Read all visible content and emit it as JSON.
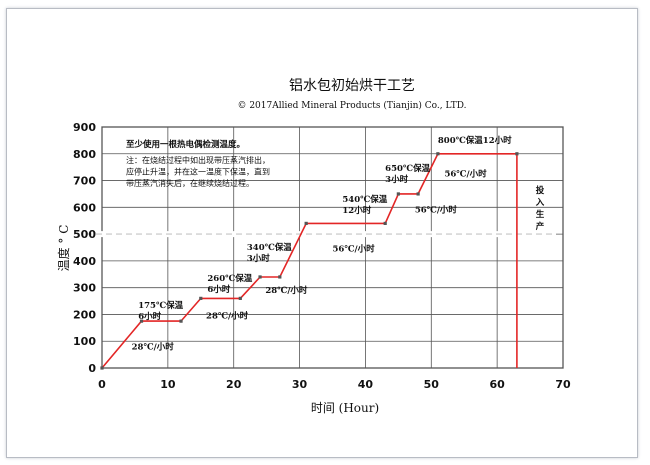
{
  "chart_data": {
    "type": "line",
    "title": "铝水包初始烘干工艺",
    "subtitle": "©  2017Allied Mineral Products (Tianjin) Co., LTD.",
    "xlabel": "时间 (Hour)",
    "ylabel": "温度 ° C",
    "xlim": [
      0,
      70
    ],
    "ylim": [
      0,
      900
    ],
    "xticks": [
      0,
      10,
      20,
      30,
      40,
      50,
      60,
      70
    ],
    "yticks": [
      0,
      100,
      200,
      300,
      400,
      500,
      600,
      700,
      800,
      900
    ],
    "grid": true,
    "series": [
      {
        "color": "#e32626",
        "points": [
          {
            "x": 0,
            "y": 0
          },
          {
            "x": 6,
            "y": 175
          },
          {
            "x": 12,
            "y": 175
          },
          {
            "x": 15,
            "y": 260
          },
          {
            "x": 21,
            "y": 260
          },
          {
            "x": 24,
            "y": 340
          },
          {
            "x": 27,
            "y": 340
          },
          {
            "x": 31,
            "y": 540
          },
          {
            "x": 43,
            "y": 540
          },
          {
            "x": 45,
            "y": 650
          },
          {
            "x": 48,
            "y": 650
          },
          {
            "x": 51,
            "y": 800
          },
          {
            "x": 63,
            "y": 800
          },
          {
            "x": 63,
            "y": 0
          }
        ]
      }
    ],
    "annotations": [
      {
        "lines": [
          "28℃/小时"
        ],
        "x": 4.5,
        "y": 70
      },
      {
        "lines": [
          "175℃保温",
          "6小时"
        ],
        "x": 5.5,
        "y": 225
      },
      {
        "lines": [
          "28℃/小时"
        ],
        "x": 15.8,
        "y": 185
      },
      {
        "lines": [
          "260℃保温",
          "6小时"
        ],
        "x": 16,
        "y": 325
      },
      {
        "lines": [
          "28℃/小时"
        ],
        "x": 24.8,
        "y": 280
      },
      {
        "lines": [
          "340℃保温",
          "3小时"
        ],
        "x": 22,
        "y": 440
      },
      {
        "lines": [
          "56℃/小时"
        ],
        "x": 35,
        "y": 435
      },
      {
        "lines": [
          "540℃保温",
          "12小时"
        ],
        "x": 36.5,
        "y": 620
      },
      {
        "lines": [
          "650℃保温",
          "3小时"
        ],
        "x": 43,
        "y": 735
      },
      {
        "lines": [
          "56℃/小时"
        ],
        "x": 47.5,
        "y": 580
      },
      {
        "lines": [
          "56℃/小时"
        ],
        "x": 52,
        "y": 715
      },
      {
        "lines": [
          "800℃保温12小时"
        ],
        "x": 51,
        "y": 840
      }
    ],
    "notes": {
      "heading": "至少使用一根热电偶检测温度。",
      "body": [
        "注：在烧结过程中如出现带压蒸汽排出，",
        "应停止升温，并在这一温度下保温，直到",
        "带压蒸汽消失后，在继续烧结过程。"
      ]
    },
    "side_label": "投入生产"
  }
}
